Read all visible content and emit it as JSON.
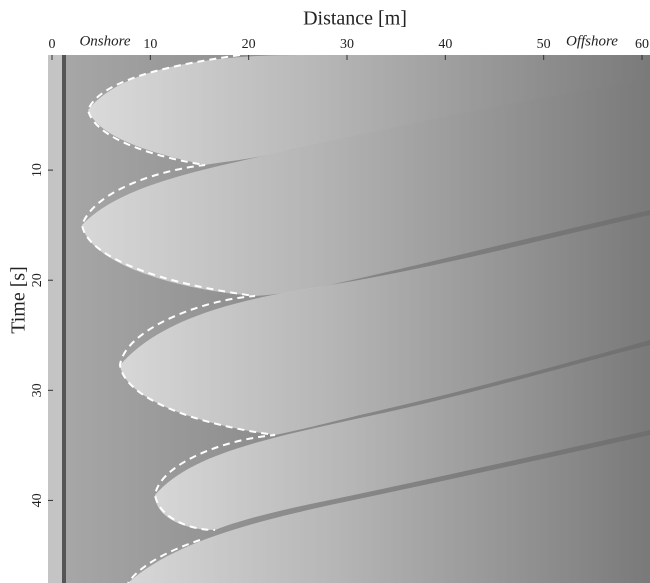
{
  "chart_data": {
    "type": "timestack",
    "xlabel": "Distance [m]",
    "ylabel": "Time [s]",
    "xlim": [
      0,
      60
    ],
    "xticks": [
      0,
      10,
      20,
      30,
      40,
      50,
      60
    ],
    "ylim": [
      0,
      47.5
    ],
    "yticks": [
      10,
      20,
      30,
      40
    ],
    "annotations": [
      "Onshore",
      "Offshore"
    ]
  }
}
